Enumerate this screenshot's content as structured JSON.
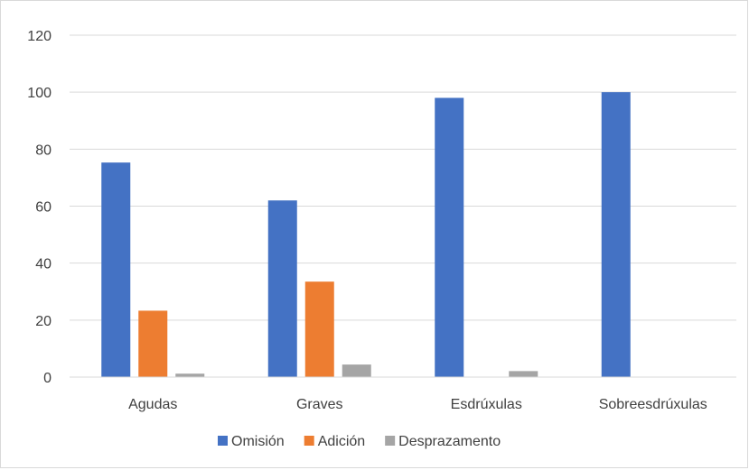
{
  "chart_data": {
    "type": "bar",
    "categories": [
      "Agudas",
      "Graves",
      "Esdrúxulas",
      "Sobreesdrúxulas"
    ],
    "series": [
      {
        "name": "Omisión",
        "values": [
          75.3,
          62,
          98,
          100
        ],
        "color": "#4472c4"
      },
      {
        "name": "Adición",
        "values": [
          23.3,
          33.5,
          0,
          0
        ],
        "color": "#ed7d31"
      },
      {
        "name": "Desprazamento",
        "values": [
          1.2,
          4.4,
          2.1,
          0
        ],
        "color": "#a5a5a5"
      }
    ],
    "yticks": [
      "0",
      "20",
      "40",
      "60",
      "80",
      "100",
      "120"
    ],
    "ylim": [
      0,
      120
    ],
    "grid": true,
    "legend_position": "bottom"
  }
}
